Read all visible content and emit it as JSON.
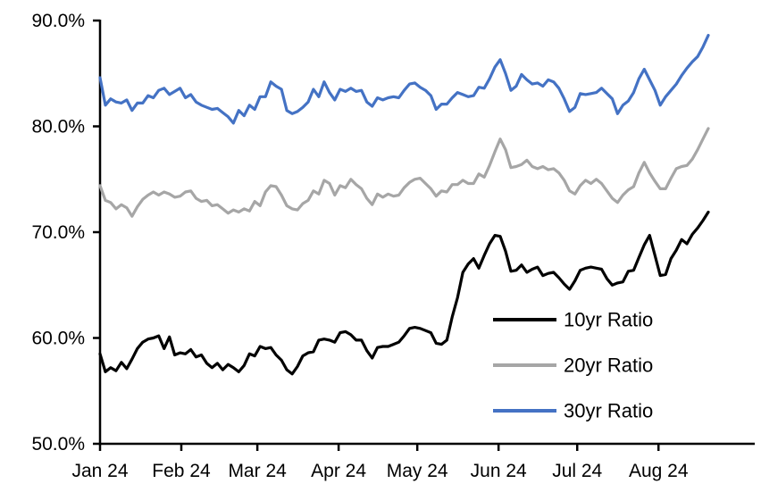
{
  "chart_data": {
    "type": "line",
    "title": "",
    "grid": "off",
    "legend_position": "inside-right",
    "x_axis": {
      "tick_labels": [
        "Jan 24",
        "Feb 24",
        "Mar 24",
        "Apr 24",
        "May 24",
        "Jun 24",
        "Jul 24",
        "Aug 24"
      ],
      "month_day_offsets": [
        0,
        31,
        60,
        91,
        121,
        152,
        182,
        213
      ],
      "domain_days": 232
    },
    "y_axis": {
      "tick_labels": [
        "50.0%",
        "60.0%",
        "70.0%",
        "80.0%",
        "90.0%"
      ],
      "min": 50,
      "max": 90,
      "step": 10,
      "unit": "%"
    },
    "colors": {
      "black_series": "#000000",
      "gray_series": "#A6A6A6",
      "blue_series": "#4472C4",
      "axis": "#000000"
    },
    "series": [
      {
        "name": "10yr Ratio",
        "color": "#000000",
        "values": [
          58.5,
          56.8,
          57.2,
          56.9,
          57.7,
          57.1,
          58.0,
          59.0,
          59.6,
          59.9,
          60.0,
          60.2,
          59.0,
          60.1,
          58.4,
          58.6,
          58.5,
          58.9,
          58.2,
          58.4,
          57.6,
          57.2,
          57.6,
          57.0,
          57.5,
          57.2,
          56.8,
          57.4,
          58.5,
          58.3,
          59.2,
          59.0,
          59.1,
          58.4,
          57.9,
          57.0,
          56.6,
          57.3,
          58.3,
          58.6,
          58.7,
          59.8,
          59.9,
          59.8,
          59.6,
          60.5,
          60.6,
          60.3,
          59.8,
          59.8,
          58.8,
          58.1,
          59.1,
          59.2,
          59.2,
          59.4,
          59.6,
          60.2,
          60.9,
          61.0,
          60.9,
          60.7,
          60.5,
          59.5,
          59.4,
          59.8,
          62.0,
          63.8,
          66.2,
          67.0,
          67.5,
          66.6,
          67.8,
          68.9,
          69.7,
          69.6,
          68.2,
          66.3,
          66.4,
          66.9,
          66.2,
          66.5,
          66.7,
          65.9,
          66.1,
          66.2,
          65.7,
          65.1,
          64.6,
          65.4,
          66.4,
          66.6,
          66.7,
          66.6,
          66.5,
          65.6,
          65.0,
          65.2,
          65.3,
          66.3,
          66.4,
          67.6,
          68.8,
          69.7,
          67.8,
          65.9,
          66.0,
          67.5,
          68.3,
          69.3,
          68.9,
          69.8,
          70.4,
          71.1,
          71.9
        ]
      },
      {
        "name": "20yr Ratio",
        "color": "#A6A6A6",
        "values": [
          74.4,
          73.0,
          72.8,
          72.2,
          72.6,
          72.3,
          71.5,
          72.4,
          73.1,
          73.5,
          73.8,
          73.5,
          73.8,
          73.6,
          73.3,
          73.4,
          73.8,
          73.9,
          73.2,
          72.9,
          73.0,
          72.5,
          72.6,
          72.2,
          71.8,
          72.1,
          71.9,
          72.2,
          72.0,
          72.9,
          72.5,
          73.8,
          74.4,
          74.3,
          73.5,
          72.5,
          72.2,
          72.1,
          72.7,
          73.0,
          73.9,
          73.6,
          74.9,
          74.6,
          73.5,
          74.4,
          74.2,
          75.0,
          74.5,
          74.1,
          73.2,
          72.6,
          73.6,
          73.3,
          73.6,
          73.4,
          73.5,
          74.2,
          74.7,
          75.0,
          75.1,
          74.6,
          74.1,
          73.4,
          73.9,
          73.8,
          74.5,
          74.5,
          74.9,
          74.6,
          74.6,
          75.5,
          75.2,
          76.3,
          77.6,
          78.8,
          77.8,
          76.1,
          76.2,
          76.4,
          76.8,
          76.2,
          76.0,
          76.2,
          75.9,
          76.0,
          75.6,
          74.9,
          73.9,
          73.6,
          74.4,
          74.9,
          74.6,
          75.0,
          74.6,
          73.9,
          73.2,
          72.8,
          73.5,
          74.0,
          74.3,
          75.6,
          76.6,
          75.6,
          74.8,
          74.1,
          74.1,
          75.1,
          76.0,
          76.2,
          76.3,
          76.9,
          77.8,
          78.8,
          79.8
        ]
      },
      {
        "name": "30yr Ratio",
        "color": "#4472C4",
        "values": [
          84.6,
          82.0,
          82.6,
          82.3,
          82.2,
          82.5,
          81.5,
          82.2,
          82.2,
          82.9,
          82.7,
          83.4,
          83.6,
          83.0,
          83.3,
          83.6,
          82.7,
          83.0,
          82.3,
          82.0,
          81.8,
          81.6,
          81.7,
          81.3,
          80.9,
          80.3,
          81.5,
          81.0,
          82.0,
          81.6,
          82.8,
          82.8,
          84.2,
          83.8,
          83.5,
          81.5,
          81.2,
          81.4,
          81.8,
          82.3,
          83.5,
          82.8,
          84.2,
          83.2,
          82.5,
          83.5,
          83.3,
          83.6,
          83.3,
          83.4,
          82.3,
          81.9,
          82.7,
          82.5,
          82.7,
          82.8,
          82.7,
          83.4,
          84.0,
          84.1,
          83.7,
          83.4,
          82.9,
          81.6,
          82.1,
          82.1,
          82.7,
          83.2,
          83.0,
          82.8,
          82.9,
          83.7,
          83.6,
          84.5,
          85.6,
          86.3,
          85.0,
          83.4,
          83.8,
          84.9,
          84.4,
          84.0,
          84.1,
          83.8,
          84.4,
          84.2,
          83.6,
          82.6,
          81.4,
          81.8,
          83.1,
          83.0,
          83.1,
          83.2,
          83.6,
          83.1,
          82.6,
          81.2,
          82.0,
          82.4,
          83.2,
          84.5,
          85.4,
          84.4,
          83.4,
          82.0,
          82.8,
          83.4,
          84.0,
          84.8,
          85.5,
          86.1,
          86.6,
          87.5,
          88.6
        ]
      }
    ],
    "legend_entries": [
      "10yr Ratio",
      "20yr Ratio",
      "30yr Ratio"
    ]
  }
}
